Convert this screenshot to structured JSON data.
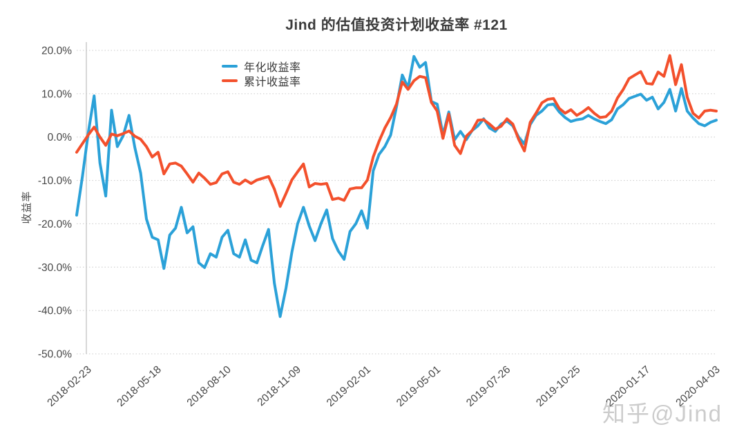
{
  "figure": {
    "title": "Jind 的估值投资计划收益率 #121",
    "watermark": "知乎@Jind"
  },
  "colors": {
    "annualized_line": "#2BA1D8",
    "cumulative_line": "#F3502C",
    "grid_line": "#c9c9c9",
    "axis_spine": "#bdbdbd",
    "text": "#464646"
  },
  "chart_data": {
    "type": "line",
    "title": "Jind 的估值投资计划收益率 #121",
    "xlabel": "",
    "ylabel": "收益率",
    "ylim": [
      -50,
      20
    ],
    "y_tick_values": [
      20,
      10,
      0,
      -10,
      -20,
      -30,
      -40,
      -50
    ],
    "y_tick_labels": [
      "20.0%",
      "10.0%",
      "0.0%",
      "-10.0%",
      "-20.0%",
      "-30.0%",
      "-40.0%",
      "-50.0%"
    ],
    "x_tick_labels": [
      "2018-02-23",
      "2018-05-18",
      "2018-08-10",
      "2018-11-09",
      "2019-02-01",
      "2019-05-01",
      "2019-07-26",
      "2019-10-25",
      "2020-01-17",
      "2020-04-03"
    ],
    "x_unit": "weekly dates from 2018-02-23 to 2020-04-03",
    "grid": "horizontal dotted lines, no vertical grid",
    "legend_position": "upper left inside plot",
    "values_unit": "percent",
    "series": [
      {
        "name": "年化收益率",
        "color": "#2BA1D8",
        "values": [
          -18.0,
          -9.0,
          1.0,
          9.5,
          -6.0,
          -13.6,
          6.2,
          -2.2,
          0.3,
          5.0,
          -2.4,
          -8.3,
          -18.9,
          -23.1,
          -23.7,
          -30.3,
          -22.6,
          -21.0,
          -16.2,
          -22.1,
          -20.7,
          -29.0,
          -30.1,
          -26.9,
          -27.7,
          -23.1,
          -21.5,
          -26.9,
          -27.7,
          -23.7,
          -28.4,
          -29.0,
          -25.0,
          -21.3,
          -33.7,
          -41.4,
          -34.8,
          -26.6,
          -20.0,
          -16.2,
          -20.5,
          -23.9,
          -20.0,
          -16.8,
          -23.4,
          -26.3,
          -28.2,
          -21.8,
          -20.0,
          -17.0,
          -21.0,
          -7.8,
          -4.0,
          -2.2,
          0.5,
          7.0,
          14.3,
          11.4,
          18.6,
          16.1,
          17.2,
          8.2,
          7.6,
          0.5,
          5.8,
          -0.6,
          1.3,
          -0.6,
          1.5,
          2.6,
          4.2,
          2.1,
          1.3,
          3.0,
          3.7,
          2.6,
          0.0,
          -1.6,
          2.9,
          5.0,
          6.0,
          7.4,
          7.6,
          5.8,
          4.5,
          3.6,
          4.0,
          4.2,
          5.0,
          4.2,
          3.6,
          3.1,
          4.0,
          6.5,
          7.5,
          8.9,
          9.4,
          9.9,
          8.5,
          9.2,
          6.5,
          8.0,
          11.0,
          6.0,
          11.2,
          6.0,
          4.4,
          3.1,
          2.6,
          3.4,
          3.9
        ]
      },
      {
        "name": "累计收益率",
        "color": "#F3502C",
        "values": [
          -3.5,
          -1.5,
          0.5,
          2.3,
          0.0,
          -1.9,
          0.7,
          0.3,
          0.8,
          1.4,
          0.2,
          -0.5,
          -2.2,
          -4.6,
          -3.5,
          -8.5,
          -6.2,
          -6.0,
          -6.7,
          -8.5,
          -10.4,
          -8.3,
          -9.5,
          -10.9,
          -10.5,
          -8.5,
          -8.0,
          -10.4,
          -10.9,
          -9.9,
          -10.7,
          -9.9,
          -9.5,
          -9.1,
          -12.0,
          -16.0,
          -13.0,
          -9.9,
          -8.0,
          -6.2,
          -11.5,
          -10.7,
          -10.9,
          -10.7,
          -14.4,
          -14.1,
          -14.6,
          -12.0,
          -11.7,
          -11.7,
          -9.9,
          -4.6,
          -1.0,
          2.1,
          4.5,
          7.6,
          12.7,
          11.0,
          13.0,
          14.0,
          13.7,
          8.0,
          6.0,
          -0.3,
          5.3,
          -1.9,
          -3.8,
          0.2,
          1.5,
          3.9,
          4.0,
          3.0,
          1.8,
          2.5,
          4.2,
          3.0,
          -0.5,
          -3.2,
          3.4,
          5.5,
          7.9,
          8.7,
          8.9,
          6.6,
          5.5,
          6.3,
          5.0,
          5.8,
          6.8,
          5.5,
          4.5,
          4.7,
          6.0,
          9.0,
          11.0,
          13.5,
          14.3,
          15.1,
          12.4,
          12.2,
          15.0,
          14.0,
          18.8,
          12.1,
          16.7,
          9.2,
          5.5,
          4.4,
          6.0,
          6.2,
          6.0
        ]
      }
    ]
  }
}
